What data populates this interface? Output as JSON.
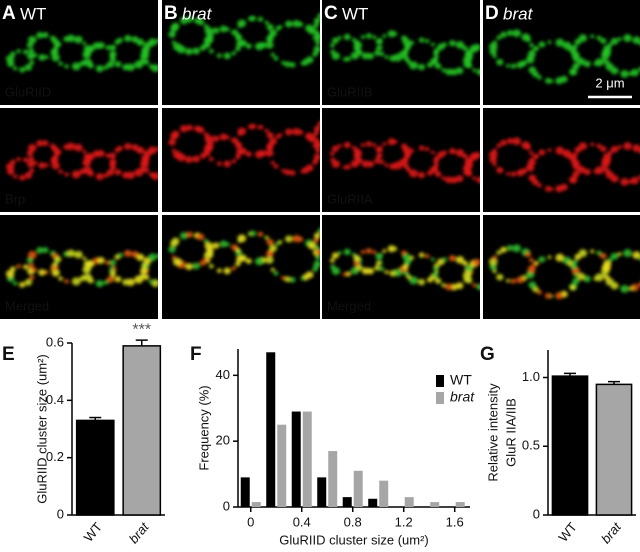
{
  "panels": [
    {
      "letter": "A",
      "genotype": "WT",
      "channels": [
        "GluRIID",
        "Brp",
        "Merged"
      ]
    },
    {
      "letter": "B",
      "genotype": "brat"
    },
    {
      "letter": "C",
      "genotype": "WT",
      "channels": [
        "GluRIIB",
        "GluRIIA",
        "Merged"
      ]
    },
    {
      "letter": "D",
      "genotype": "brat"
    }
  ],
  "scale_bar": "2 μm",
  "chart_data": [
    {
      "panel": "E",
      "type": "bar",
      "y_label": "GluRIID cluster size (um²)",
      "categories": [
        "WT",
        "brat"
      ],
      "values": [
        0.33,
        0.59
      ],
      "errors": [
        0.01,
        0.02
      ],
      "colors": [
        "#000000",
        "#a6a6a6"
      ],
      "value_annotations": [
        null,
        "***"
      ],
      "ylim": [
        0,
        0.6
      ],
      "yticks": [
        0,
        0.2,
        0.4,
        0.6
      ],
      "grid": false
    },
    {
      "panel": "F",
      "type": "histogram",
      "x_label": "GluRIID cluster size (um²)",
      "y_label": "Frequency (%)",
      "x": [
        0,
        0.2,
        0.4,
        0.6,
        0.8,
        1.0,
        1.2,
        1.4,
        1.6
      ],
      "series": [
        {
          "name": "WT",
          "color": "#000000",
          "values": [
            9,
            47,
            29,
            9,
            3,
            2.5,
            0,
            0,
            0
          ]
        },
        {
          "name": "brat",
          "color": "#a6a6a6",
          "values": [
            1.5,
            25,
            29,
            17,
            11,
            8,
            3,
            1.5,
            1.5
          ]
        }
      ],
      "xlim": [
        -0.1,
        1.72
      ],
      "xticks": [
        0,
        0.4,
        0.8,
        1.2,
        1.6
      ],
      "ylim": [
        0,
        48
      ],
      "yticks": [
        0,
        20,
        40
      ],
      "legend": "upper right",
      "grid": false
    },
    {
      "panel": "G",
      "type": "bar",
      "y_label": [
        "Relative intensity",
        "GluR IIA/IIB"
      ],
      "categories": [
        "WT",
        "brat"
      ],
      "values": [
        1.01,
        0.95
      ],
      "errors": [
        0.02,
        0.02
      ],
      "colors": [
        "#000000",
        "#a6a6a6"
      ],
      "ylim": [
        0,
        1.2
      ],
      "yticks": [
        0,
        0.5,
        {
          "value": 1,
          "label": "1.0"
        }
      ],
      "grid": false
    }
  ]
}
